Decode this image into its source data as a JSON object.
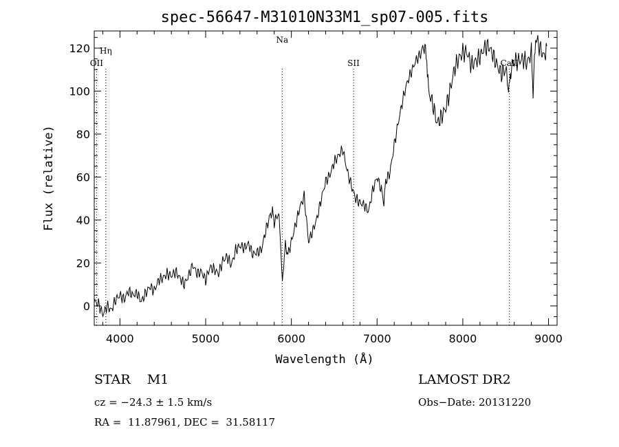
{
  "chart_data": {
    "type": "line",
    "title": "spec-56647-M31010N33M1_sp07-005.fits",
    "xlabel": "Wavelength (Å)",
    "ylabel": "Flux (relative)",
    "xlim": [
      3700,
      9100
    ],
    "ylim": [
      -9,
      128
    ],
    "xticks": [
      4000,
      5000,
      6000,
      7000,
      8000,
      9000
    ],
    "yticks": [
      0,
      20,
      40,
      60,
      80,
      100,
      120
    ],
    "grid": false,
    "series": [
      {
        "color": "#000000",
        "x": [
          3700,
          3750,
          3800,
          3850,
          3900,
          3950,
          4000,
          4050,
          4100,
          4150,
          4200,
          4250,
          4300,
          4350,
          4400,
          4450,
          4500,
          4550,
          4600,
          4650,
          4700,
          4750,
          4800,
          4850,
          4900,
          4950,
          5000,
          5050,
          5100,
          5150,
          5200,
          5250,
          5300,
          5350,
          5400,
          5450,
          5500,
          5550,
          5600,
          5650,
          5700,
          5750,
          5780,
          5800,
          5850,
          5870,
          5895,
          5910,
          5930,
          5960,
          6000,
          6050,
          6100,
          6150,
          6200,
          6250,
          6300,
          6350,
          6400,
          6450,
          6500,
          6550,
          6600,
          6650,
          6700,
          6750,
          6800,
          6850,
          6900,
          6950,
          7000,
          7050,
          7080,
          7100,
          7150,
          7200,
          7250,
          7300,
          7350,
          7400,
          7450,
          7500,
          7550,
          7580,
          7600,
          7650,
          7700,
          7750,
          7800,
          7850,
          7900,
          7950,
          8000,
          8050,
          8100,
          8150,
          8200,
          8250,
          8300,
          8350,
          8400,
          8450,
          8500,
          8520,
          8540,
          8560,
          8600,
          8650,
          8700,
          8750,
          8800,
          8820,
          8850,
          8900,
          8950,
          8980
        ],
        "y": [
          2,
          1,
          -4,
          0,
          -2,
          3,
          5,
          3,
          7,
          5,
          6,
          2,
          6,
          9,
          7,
          12,
          13,
          15,
          14,
          16,
          13,
          10,
          14,
          19,
          15,
          16,
          12,
          18,
          17,
          15,
          21,
          23,
          19,
          26,
          28,
          27,
          29,
          24,
          25,
          26,
          35,
          42,
          44,
          39,
          43,
          33,
          10,
          20,
          28,
          24,
          30,
          38,
          46,
          51,
          30,
          35,
          41,
          50,
          58,
          61,
          67,
          70,
          73,
          63,
          56,
          50,
          48,
          47,
          44,
          54,
          60,
          54,
          48,
          58,
          62,
          75,
          86,
          96,
          104,
          109,
          114,
          117,
          121,
          115,
          100,
          94,
          85,
          88,
          92,
          100,
          110,
          115,
          118,
          118,
          112,
          114,
          116,
          120,
          121,
          117,
          112,
          108,
          110,
          105,
          100,
          110,
          114,
          114,
          115,
          113,
          118,
          100,
          125,
          120,
          116,
          121
        ]
      }
    ],
    "lines": [
      {
        "label": "OII",
        "x": 3727
      },
      {
        "label": "Hη",
        "x": 3835
      },
      {
        "label": "Na",
        "x": 5893
      },
      {
        "label": "SII",
        "x": 6725
      },
      {
        "label": "CaII",
        "x": 8542
      }
    ]
  },
  "info": {
    "obj_class": "STAR    M1",
    "cz": "cz = −24.3 ± 1.5 km/s",
    "coords": "RA =  11.87961, DEC =  31.58117",
    "survey": "LAMOST DR2",
    "obs_date": "Obs−Date: 20131220"
  }
}
